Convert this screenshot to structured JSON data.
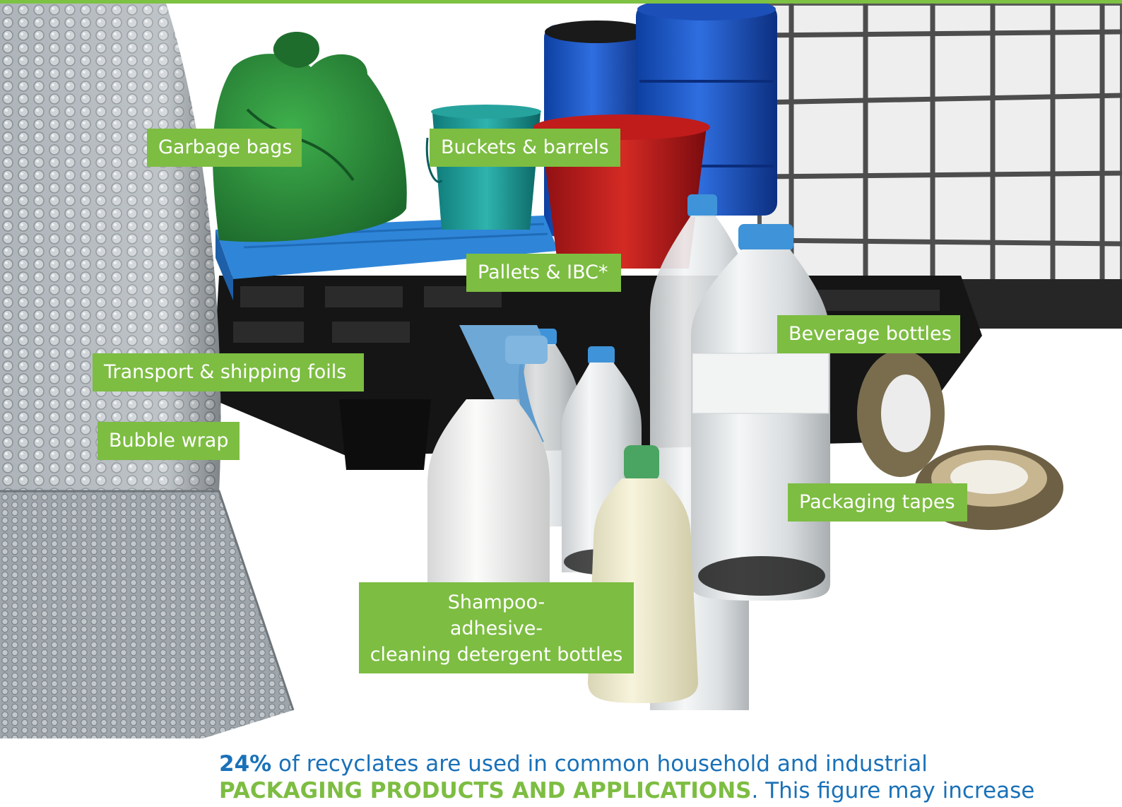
{
  "colors": {
    "accent_green": "#7dbd42",
    "text_blue": "#1a71b8"
  },
  "labels": {
    "garbage_bags": "Garbage bags",
    "buckets_barrels": "Buckets & barrels",
    "pallets_ibc": "Pallets & IBC*",
    "beverage_bottles": "Beverage bottles",
    "transport_foils": "Transport & shipping foils",
    "bubble_wrap": "Bubble wrap",
    "packaging_tapes": "Packaging tapes",
    "shampoo_lines": [
      "Shampoo-",
      "adhesive-",
      "cleaning detergent bottles"
    ]
  },
  "caption": {
    "percent": "24%",
    "line1_rest": " of recyclates are used in common household and industrial",
    "highlight": "PACKAGING PRODUCTS AND APPLICATIONS",
    "line2_rest": ". This figure may increase"
  }
}
